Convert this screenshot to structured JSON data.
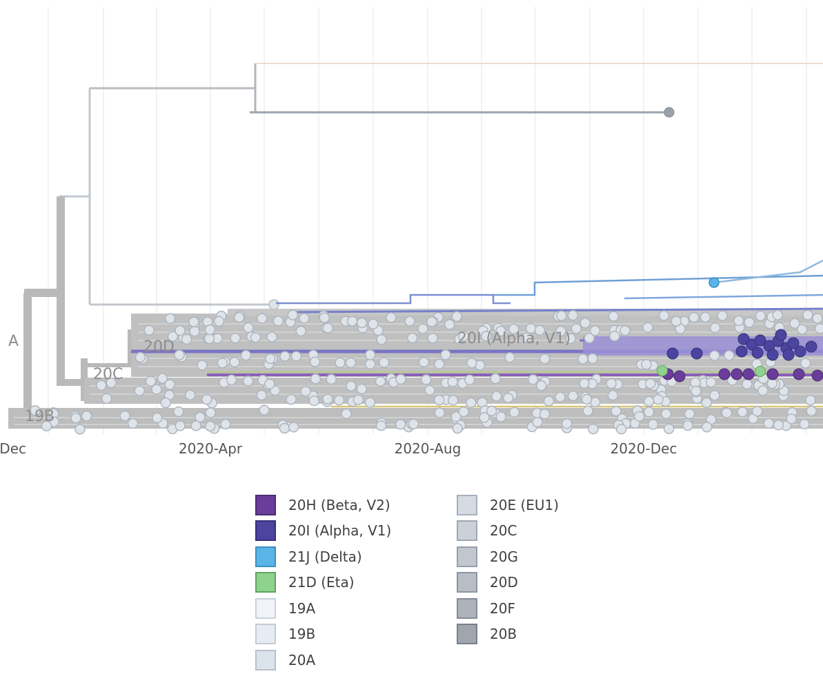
{
  "time_axis": {
    "ticks": [
      {
        "label": "Dec"
      },
      {
        "label": "2020-Apr"
      },
      {
        "label": "2020-Aug"
      },
      {
        "label": "2020-Dec"
      }
    ]
  },
  "clade_labels": [
    {
      "id": "a",
      "text": "A"
    },
    {
      "id": "20d",
      "text": "20D"
    },
    {
      "id": "20c",
      "text": "20C"
    },
    {
      "id": "19b",
      "text": "19B"
    },
    {
      "id": "20i",
      "text": "20I (Alpha, V1)"
    }
  ],
  "legend": {
    "columns": [
      [
        {
          "label": "20H (Beta, V2)",
          "fill": "#6a3d9a",
          "border": "#4a2a70"
        },
        {
          "label": "20I (Alpha, V1)",
          "fill": "#4b45a0",
          "border": "#342f7a"
        },
        {
          "label": "21J (Delta)",
          "fill": "#5ab4e5",
          "border": "#3a8fc0"
        },
        {
          "label": "21D (Eta)",
          "fill": "#8fd18f",
          "border": "#5da55d"
        },
        {
          "label": "19A",
          "fill": "#f0f4f8",
          "border": "#c9d0d8"
        },
        {
          "label": "19B",
          "fill": "#e6ecf2",
          "border": "#c2cad3"
        },
        {
          "label": "20A",
          "fill": "#dde3ea",
          "border": "#b8c0ca"
        }
      ],
      [
        {
          "label": "20E (EU1)",
          "fill": "#d5dbe3",
          "border": "#a7b0bb"
        },
        {
          "label": "20C",
          "fill": "#cbd1d9",
          "border": "#9ea7b2"
        },
        {
          "label": "20G",
          "fill": "#c2c7cf",
          "border": "#959ea9"
        },
        {
          "label": "20D",
          "fill": "#b8bdc6",
          "border": "#8c95a0"
        },
        {
          "label": "20F",
          "fill": "#adb2bb",
          "border": "#838b96"
        },
        {
          "label": "20B",
          "fill": "#a0a5ae",
          "border": "#78808a"
        }
      ]
    ]
  },
  "colors": {
    "branch_grey": "#b9b9b9",
    "tip_grey": "#dfe4ea",
    "alpha": "#4b45a0",
    "beta": "#6a3d9a",
    "delta": "#5ab4e5",
    "eta": "#8fd18f",
    "gold": "#d8c77a"
  }
}
